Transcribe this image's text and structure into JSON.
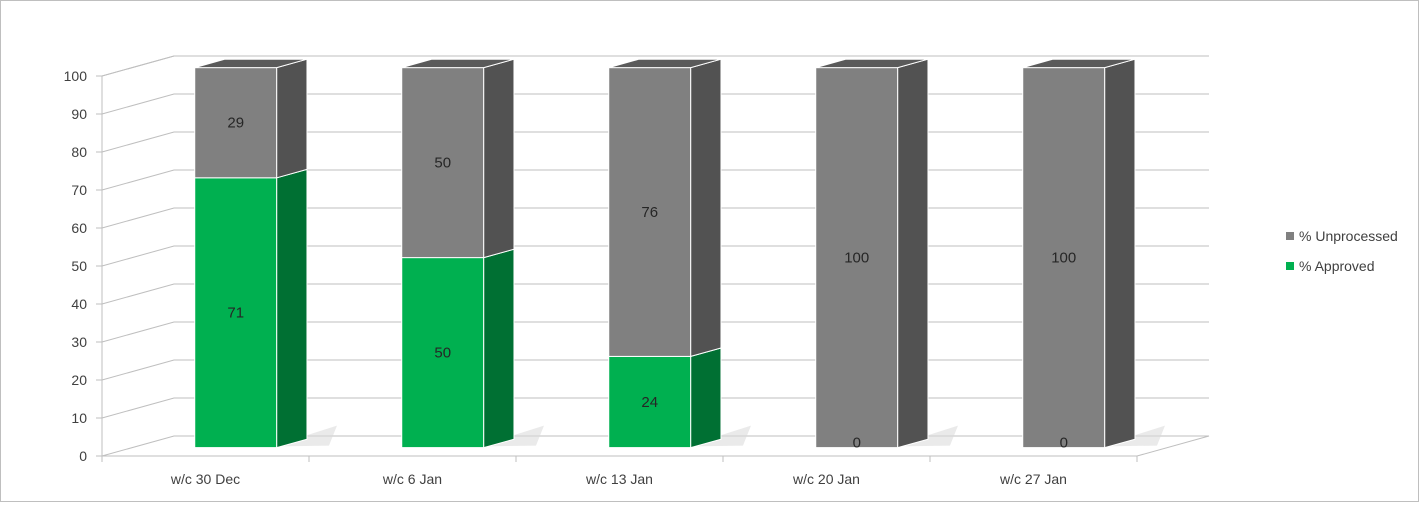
{
  "chart_data": {
    "type": "bar",
    "stacked": true,
    "three_d": true,
    "categories": [
      "w/c 30 Dec",
      "w/c 6 Jan",
      "w/c 13 Jan",
      "w/c 20 Jan",
      "w/c 27 Jan"
    ],
    "series": [
      {
        "name": "% Approved",
        "values": [
          71,
          50,
          24,
          0,
          0
        ],
        "color": "#00b050",
        "side_color": "#007033",
        "top_color": "#009a45"
      },
      {
        "name": "% Unprocessed",
        "values": [
          29,
          50,
          76,
          100,
          100
        ],
        "color": "#808080",
        "side_color": "#525252",
        "top_color": "#5a5a5a"
      }
    ],
    "ylim": [
      0,
      100
    ],
    "yticks": [
      0,
      10,
      20,
      30,
      40,
      50,
      60,
      70,
      80,
      90,
      100
    ],
    "grid": true,
    "legend_position": "right",
    "legend_order": [
      "% Unprocessed",
      "% Approved"
    ],
    "title": "",
    "xlabel": "",
    "ylabel": ""
  }
}
